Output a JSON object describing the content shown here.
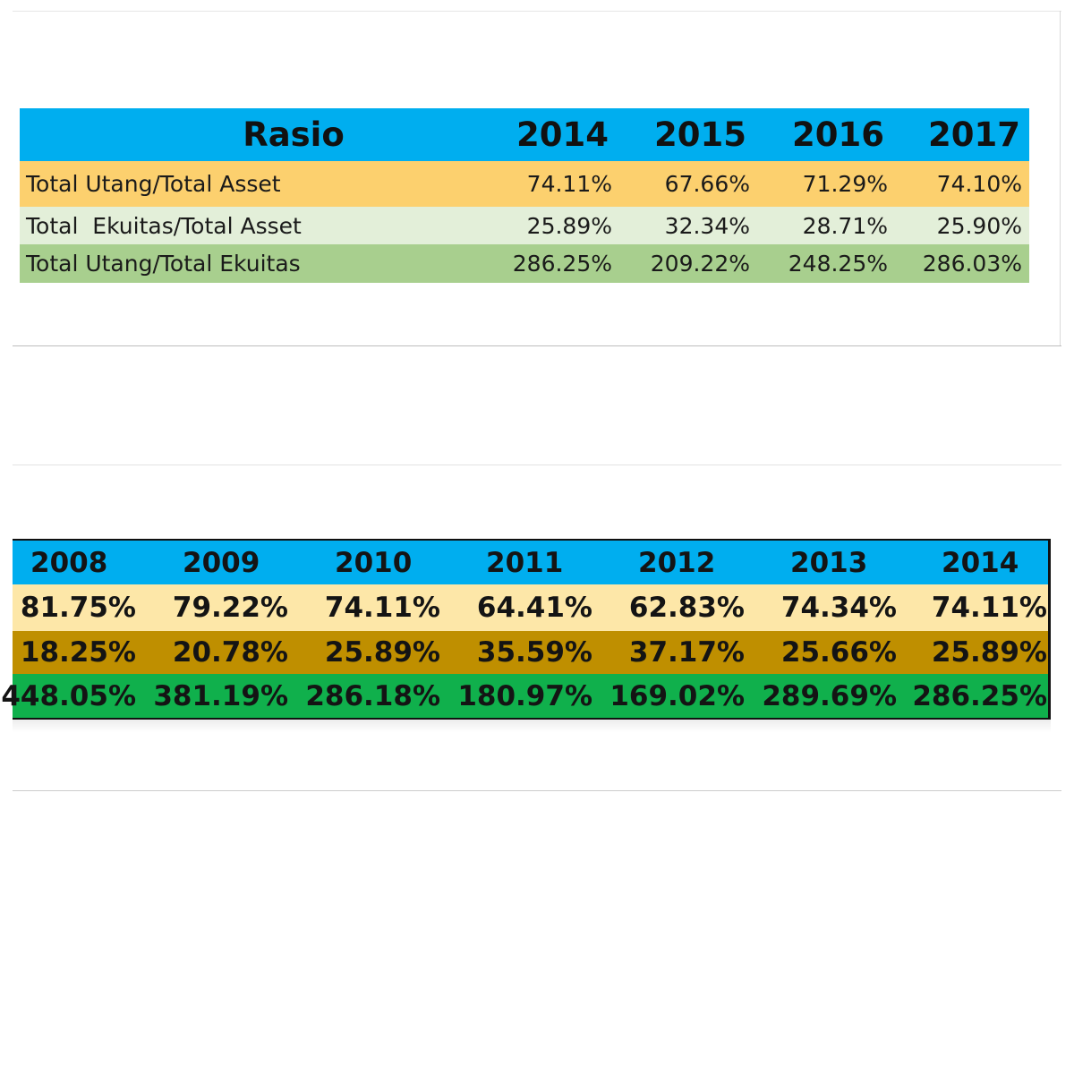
{
  "chart_data": [
    {
      "type": "table",
      "columns": [
        "Rasio",
        "2014",
        "2015",
        "2016",
        "2017"
      ],
      "rows": [
        {
          "label": "Total Utang/Total Asset",
          "values": [
            "74.11%",
            "67.66%",
            "71.29%",
            "74.10%"
          ],
          "color": "#fcd06e"
        },
        {
          "label": "Total  Ekuitas/Total Asset",
          "values": [
            "25.89%",
            "32.34%",
            "28.71%",
            "25.90%"
          ],
          "color": "#e3efd9"
        },
        {
          "label": "Total Utang/Total Ekuitas",
          "values": [
            "286.25%",
            "209.22%",
            "248.25%",
            "286.03%"
          ],
          "color": "#a8cf8e"
        }
      ],
      "header_color": "#00aeef"
    },
    {
      "type": "table",
      "columns": [
        "2008",
        "2009",
        "2010",
        "2011",
        "2012",
        "2013",
        "2014"
      ],
      "rows": [
        {
          "values": [
            "81.75%",
            "79.22%",
            "74.11%",
            "64.41%",
            "62.83%",
            "74.34%",
            "74.11%"
          ],
          "color": "#fde7a8"
        },
        {
          "values": [
            "18.25%",
            "20.78%",
            "25.89%",
            "35.59%",
            "37.17%",
            "25.66%",
            "25.89%"
          ],
          "color": "#bf8f00"
        },
        {
          "values": [
            "448.05%",
            "381.19%",
            "286.18%",
            "180.97%",
            "169.02%",
            "289.69%",
            "286.25%"
          ],
          "color": "#10b04c"
        }
      ],
      "header_color": "#00aeef"
    }
  ]
}
